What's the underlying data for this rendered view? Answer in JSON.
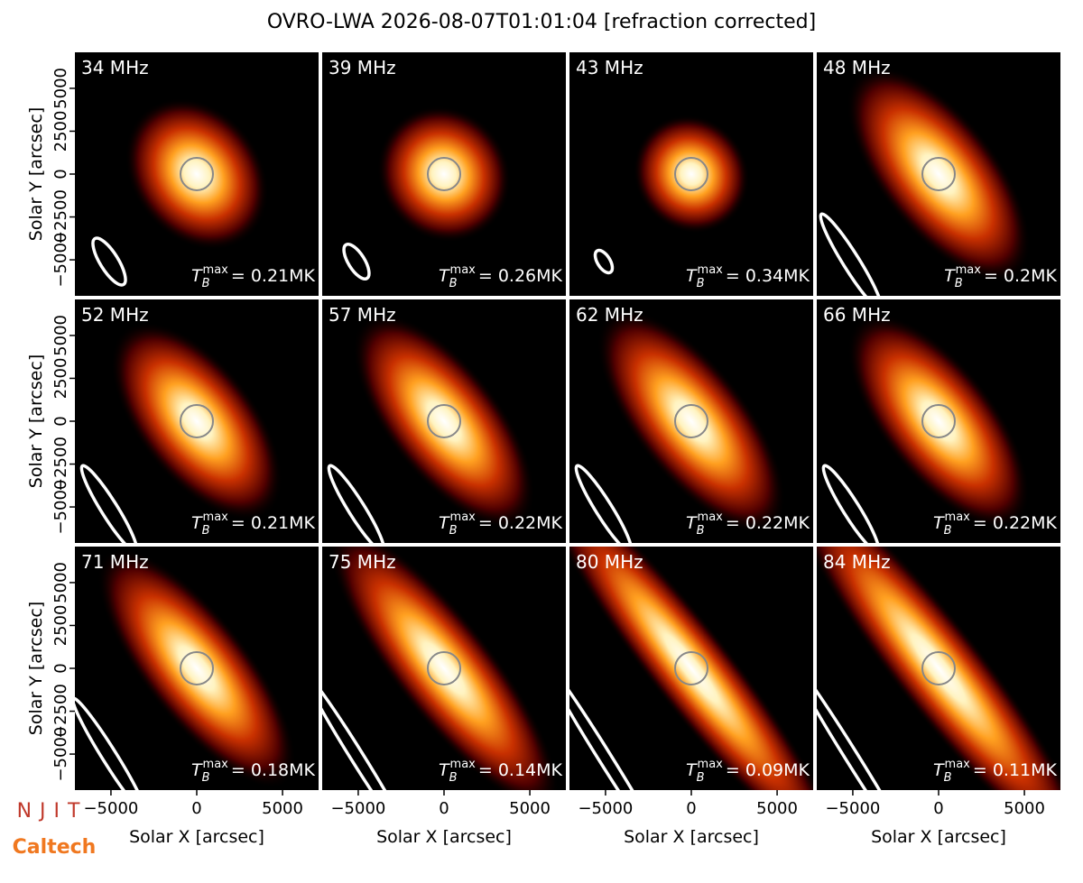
{
  "title": "OVRO-LWA 2026-08-07T01:01:04 [refraction corrected]",
  "logos": [
    "NJIT",
    "Caltech"
  ],
  "chart_data": {
    "type": "image_grid",
    "xlabel": "Solar X [arcsec]",
    "ylabel": "Solar Y [arcsec]",
    "xlim": [
      -7100,
      7100
    ],
    "ylim": [
      -7100,
      7100
    ],
    "xticks": [
      {
        "value": -5000,
        "label": "−5000"
      },
      0,
      5000
    ],
    "yticks": [
      {
        "value": -5000,
        "label": "−5000"
      },
      {
        "value": -2500,
        "label": "−2500"
      },
      0,
      2500,
      5000
    ],
    "tb_symbol": "T",
    "tb_sub": "B",
    "tb_sup": "max",
    "panels": [
      {
        "label": "34 MHz",
        "tmax_label": "= 0.21MK"
      },
      {
        "label": "39 MHz",
        "tmax_label": "= 0.26MK"
      },
      {
        "label": "43 MHz",
        "tmax_label": "= 0.34MK"
      },
      {
        "label": "48 MHz",
        "tmax_label": "= 0.2MK"
      },
      {
        "label": "52 MHz",
        "tmax_label": "= 0.21MK"
      },
      {
        "label": "57 MHz",
        "tmax_label": "= 0.22MK"
      },
      {
        "label": "62 MHz",
        "tmax_label": "= 0.22MK"
      },
      {
        "label": "66 MHz",
        "tmax_label": "= 0.22MK"
      },
      {
        "label": "71 MHz",
        "tmax_label": "= 0.18MK"
      },
      {
        "label": "75 MHz",
        "tmax_label": "= 0.14MK"
      },
      {
        "label": "80 MHz",
        "tmax_label": "= 0.09MK"
      },
      {
        "label": "84 MHz",
        "tmax_label": "= 0.11MK"
      }
    ]
  }
}
